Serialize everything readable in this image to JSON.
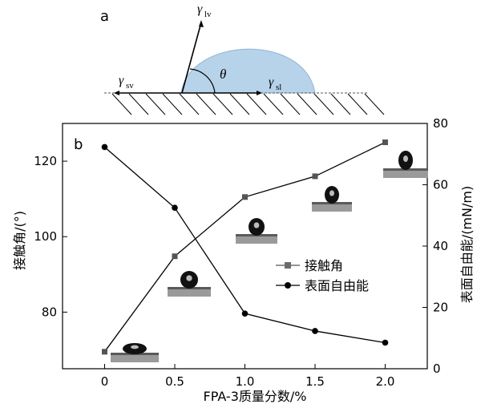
{
  "panel_a": {
    "label": "a",
    "gamma_lv": {
      "symbol": "γ",
      "sub": "lv"
    },
    "gamma_sv": {
      "symbol": "γ",
      "sub": "sv"
    },
    "gamma_sl": {
      "symbol": "γ",
      "sub": "sl"
    },
    "theta": "θ",
    "colors": {
      "droplet": "#b7d3ea"
    }
  },
  "chart_data": {
    "type": "line",
    "panel_label": "b",
    "x": [
      0,
      0.5,
      1.0,
      1.5,
      2.0
    ],
    "x_ticks": [
      "0",
      "0.5",
      "1.0",
      "1.5",
      "2.0"
    ],
    "xlabel": "FPA-3质量分数/%",
    "xlim": [
      -0.3,
      2.3
    ],
    "y_left": {
      "label": "接触角/(°)",
      "ticks": [
        80,
        100,
        120
      ],
      "lim": [
        65,
        130
      ]
    },
    "y_right": {
      "label": "表面自由能/(mN/m)",
      "ticks": [
        0,
        20,
        40,
        60,
        80
      ],
      "lim": [
        0,
        80
      ]
    },
    "series": [
      {
        "name": "接触角",
        "axis": "left",
        "marker": "square",
        "color": "#555555",
        "values": [
          69.5,
          94.8,
          110.5,
          116.0,
          125.0
        ]
      },
      {
        "name": "表面自由能",
        "axis": "right",
        "marker": "circle",
        "color": "#000000",
        "values": [
          72.3,
          52.5,
          18.0,
          12.3,
          8.5
        ]
      }
    ],
    "legend_position": "center-right"
  }
}
